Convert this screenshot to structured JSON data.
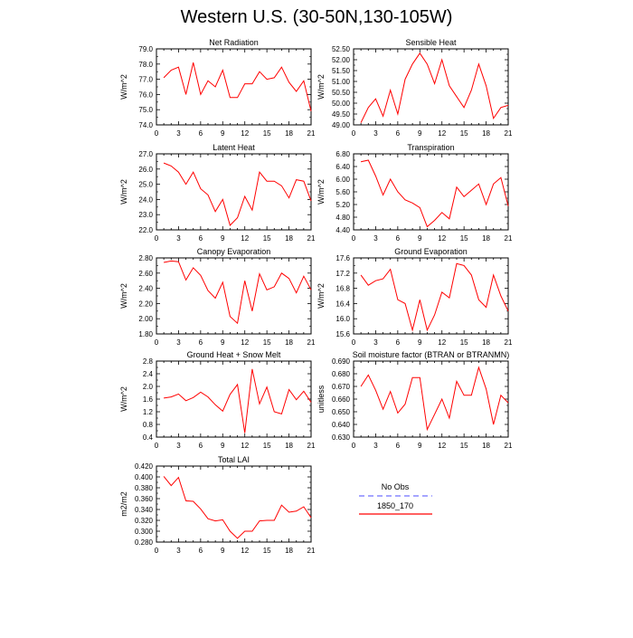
{
  "figure": {
    "title": "Western U.S. (30-50N,130-105W)"
  },
  "legend": {
    "entries": [
      {
        "label": "No Obs",
        "color": "#6f6fff",
        "style": "dashed"
      },
      {
        "label": "1850_170",
        "color": "#ff0000",
        "style": "solid"
      }
    ]
  },
  "chart_data": [
    {
      "type": "line",
      "title": "Net Radiation",
      "ylabel": "W/m^2",
      "xlim": [
        0,
        21
      ],
      "ylim": [
        74.0,
        79.0
      ],
      "xticks": [
        0,
        3,
        6,
        9,
        12,
        15,
        18,
        21
      ],
      "yticks": [
        74.0,
        75.0,
        76.0,
        77.0,
        78.0,
        79.0
      ],
      "ytick_labels": [
        "74.0",
        "75.0",
        "76.0",
        "77.0",
        "78.0",
        "79.0"
      ],
      "series": [
        {
          "name": "1850_170",
          "x": [
            1,
            2,
            3,
            4,
            5,
            6,
            7,
            8,
            9,
            10,
            11,
            12,
            13,
            14,
            15,
            16,
            17,
            18,
            19,
            20,
            21
          ],
          "y": [
            77.1,
            77.6,
            77.8,
            76.0,
            78.1,
            76.0,
            76.9,
            76.5,
            77.6,
            75.8,
            75.8,
            76.7,
            76.7,
            77.5,
            77.0,
            77.1,
            77.8,
            76.8,
            76.2,
            76.9,
            74.9
          ]
        }
      ]
    },
    {
      "type": "line",
      "title": "Sensible Heat",
      "ylabel": "W/m^2",
      "xlim": [
        0,
        21
      ],
      "ylim": [
        49.0,
        52.5
      ],
      "xticks": [
        0,
        3,
        6,
        9,
        12,
        15,
        18,
        21
      ],
      "yticks": [
        49.0,
        49.5,
        50.0,
        50.5,
        51.0,
        51.5,
        52.0,
        52.5
      ],
      "ytick_labels": [
        "49.00",
        "49.50",
        "50.00",
        "50.50",
        "51.00",
        "51.50",
        "52.00",
        "52.50"
      ],
      "series": [
        {
          "name": "1850_170",
          "x": [
            1,
            2,
            3,
            4,
            5,
            6,
            7,
            8,
            9,
            10,
            11,
            12,
            13,
            14,
            15,
            16,
            17,
            18,
            19,
            20,
            21
          ],
          "y": [
            49.1,
            49.8,
            50.2,
            49.4,
            50.6,
            49.5,
            51.1,
            51.8,
            52.3,
            51.8,
            50.9,
            52.0,
            50.8,
            50.3,
            49.8,
            50.6,
            51.8,
            50.8,
            49.3,
            49.8,
            49.9
          ]
        }
      ]
    },
    {
      "type": "line",
      "title": "Latent Heat",
      "ylabel": "W/m^2",
      "xlim": [
        0,
        21
      ],
      "ylim": [
        22.0,
        27.0
      ],
      "xticks": [
        0,
        3,
        6,
        9,
        12,
        15,
        18,
        21
      ],
      "yticks": [
        22.0,
        23.0,
        24.0,
        25.0,
        26.0,
        27.0
      ],
      "ytick_labels": [
        "22.0",
        "23.0",
        "24.0",
        "25.0",
        "26.0",
        "27.0"
      ],
      "series": [
        {
          "name": "1850_170",
          "x": [
            1,
            2,
            3,
            4,
            5,
            6,
            7,
            8,
            9,
            10,
            11,
            12,
            13,
            14,
            15,
            16,
            17,
            18,
            19,
            20,
            21
          ],
          "y": [
            26.4,
            26.2,
            25.8,
            25.0,
            25.8,
            24.7,
            24.3,
            23.2,
            24.0,
            22.3,
            22.8,
            24.2,
            23.3,
            25.8,
            25.2,
            25.2,
            24.9,
            24.1,
            25.3,
            25.2,
            23.9
          ]
        }
      ]
    },
    {
      "type": "line",
      "title": "Transpiration",
      "ylabel": "W/m^2",
      "xlim": [
        0,
        21
      ],
      "ylim": [
        4.4,
        6.8
      ],
      "xticks": [
        0,
        3,
        6,
        9,
        12,
        15,
        18,
        21
      ],
      "yticks": [
        4.4,
        4.8,
        5.2,
        5.6,
        6.0,
        6.4,
        6.8
      ],
      "ytick_labels": [
        "4.40",
        "4.80",
        "5.20",
        "5.60",
        "6.00",
        "6.40",
        "6.80"
      ],
      "series": [
        {
          "name": "1850_170",
          "x": [
            1,
            2,
            3,
            4,
            5,
            6,
            7,
            8,
            9,
            10,
            11,
            12,
            13,
            14,
            15,
            16,
            17,
            18,
            19,
            20,
            21
          ],
          "y": [
            6.55,
            6.6,
            6.1,
            5.5,
            6.0,
            5.6,
            5.35,
            5.25,
            5.1,
            4.5,
            4.7,
            4.95,
            4.75,
            5.75,
            5.45,
            5.65,
            5.85,
            5.2,
            5.85,
            6.05,
            5.15
          ]
        }
      ]
    },
    {
      "type": "line",
      "title": "Canopy Evaporation",
      "ylabel": "W/m^2",
      "xlim": [
        0,
        21
      ],
      "ylim": [
        1.8,
        2.8
      ],
      "xticks": [
        0,
        3,
        6,
        9,
        12,
        15,
        18,
        21
      ],
      "yticks": [
        1.8,
        2.0,
        2.2,
        2.4,
        2.6,
        2.8
      ],
      "ytick_labels": [
        "1.80",
        "2.00",
        "2.20",
        "2.40",
        "2.60",
        "2.80"
      ],
      "series": [
        {
          "name": "1850_170",
          "x": [
            1,
            2,
            3,
            4,
            5,
            6,
            7,
            8,
            9,
            10,
            11,
            12,
            13,
            14,
            15,
            16,
            17,
            18,
            19,
            20,
            21
          ],
          "y": [
            2.74,
            2.76,
            2.75,
            2.51,
            2.67,
            2.57,
            2.37,
            2.27,
            2.48,
            2.03,
            1.94,
            2.5,
            2.1,
            2.59,
            2.38,
            2.42,
            2.6,
            2.53,
            2.34,
            2.56,
            2.38
          ]
        }
      ]
    },
    {
      "type": "line",
      "title": "Ground Evaporation",
      "ylabel": "W/m^2",
      "xlim": [
        0,
        21
      ],
      "ylim": [
        15.6,
        17.6
      ],
      "xticks": [
        0,
        3,
        6,
        9,
        12,
        15,
        18,
        21
      ],
      "yticks": [
        15.6,
        16.0,
        16.4,
        16.8,
        17.2,
        17.6
      ],
      "ytick_labels": [
        "15.6",
        "16.0",
        "16.4",
        "16.8",
        "17.2",
        "17.6"
      ],
      "series": [
        {
          "name": "1850_170",
          "x": [
            1,
            2,
            3,
            4,
            5,
            6,
            7,
            8,
            9,
            10,
            11,
            12,
            13,
            14,
            15,
            16,
            17,
            18,
            19,
            20,
            21
          ],
          "y": [
            17.15,
            16.88,
            17.0,
            17.05,
            17.3,
            16.5,
            16.4,
            15.7,
            16.5,
            15.7,
            16.1,
            16.7,
            16.55,
            17.45,
            17.4,
            17.15,
            16.5,
            16.3,
            17.15,
            16.6,
            16.2
          ]
        }
      ]
    },
    {
      "type": "line",
      "title": "Ground Heat + Snow Melt",
      "ylabel": "W/m^2",
      "xlim": [
        0,
        21
      ],
      "ylim": [
        0.4,
        2.8
      ],
      "xticks": [
        0,
        3,
        6,
        9,
        12,
        15,
        18,
        21
      ],
      "yticks": [
        0.4,
        0.8,
        1.2,
        1.6,
        2.0,
        2.4,
        2.8
      ],
      "ytick_labels": [
        "0.4",
        "0.8",
        "1.2",
        "1.6",
        "2.0",
        "2.4",
        "2.8"
      ],
      "series": [
        {
          "name": "1850_170",
          "x": [
            1,
            2,
            3,
            4,
            5,
            6,
            7,
            8,
            9,
            10,
            11,
            12,
            13,
            14,
            15,
            16,
            17,
            18,
            19,
            20,
            21
          ],
          "y": [
            1.63,
            1.67,
            1.76,
            1.55,
            1.65,
            1.82,
            1.67,
            1.42,
            1.22,
            1.75,
            2.06,
            0.53,
            2.55,
            1.45,
            1.98,
            1.2,
            1.13,
            1.9,
            1.58,
            1.85,
            1.5
          ]
        }
      ]
    },
    {
      "type": "line",
      "title": "Soil moisture factor (BTRAN or BTRANMN)",
      "ylabel": "unitless",
      "xlim": [
        0,
        21
      ],
      "ylim": [
        0.63,
        0.69
      ],
      "xticks": [
        0,
        3,
        6,
        9,
        12,
        15,
        18,
        21
      ],
      "yticks": [
        0.63,
        0.64,
        0.65,
        0.66,
        0.67,
        0.68,
        0.69
      ],
      "ytick_labels": [
        "0.630",
        "0.640",
        "0.650",
        "0.660",
        "0.670",
        "0.680",
        "0.690"
      ],
      "series": [
        {
          "name": "1850_170",
          "x": [
            1,
            2,
            3,
            4,
            5,
            6,
            7,
            8,
            9,
            10,
            11,
            12,
            13,
            14,
            15,
            16,
            17,
            18,
            19,
            20,
            21
          ],
          "y": [
            0.67,
            0.679,
            0.667,
            0.652,
            0.666,
            0.649,
            0.656,
            0.677,
            0.677,
            0.636,
            0.648,
            0.66,
            0.645,
            0.674,
            0.663,
            0.663,
            0.685,
            0.668,
            0.64,
            0.663,
            0.657
          ]
        }
      ]
    },
    {
      "type": "line",
      "title": "Total LAI",
      "ylabel": "m2/m2",
      "xlim": [
        0,
        21
      ],
      "ylim": [
        0.28,
        0.42
      ],
      "xticks": [
        0,
        3,
        6,
        9,
        12,
        15,
        18,
        21
      ],
      "yticks": [
        0.28,
        0.3,
        0.32,
        0.34,
        0.36,
        0.38,
        0.4,
        0.42
      ],
      "ytick_labels": [
        "0.280",
        "0.300",
        "0.320",
        "0.340",
        "0.360",
        "0.380",
        "0.400",
        "0.420"
      ],
      "series": [
        {
          "name": "1850_170",
          "x": [
            1,
            2,
            3,
            4,
            5,
            6,
            7,
            8,
            9,
            10,
            11,
            12,
            13,
            14,
            15,
            16,
            17,
            18,
            19,
            20,
            21
          ],
          "y": [
            0.401,
            0.384,
            0.399,
            0.356,
            0.355,
            0.341,
            0.323,
            0.319,
            0.321,
            0.3,
            0.287,
            0.3,
            0.3,
            0.319,
            0.32,
            0.32,
            0.348,
            0.335,
            0.337,
            0.345,
            0.325
          ]
        }
      ]
    }
  ]
}
